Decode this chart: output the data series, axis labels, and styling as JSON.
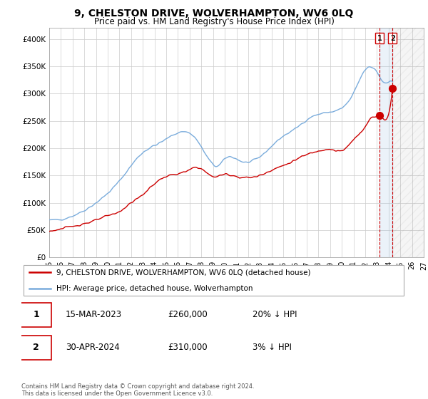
{
  "title": "9, CHELSTON DRIVE, WOLVERHAMPTON, WV6 0LQ",
  "subtitle": "Price paid vs. HM Land Registry's House Price Index (HPI)",
  "hpi_color": "#7aacdc",
  "price_color": "#cc0000",
  "background_color": "#ffffff",
  "grid_color": "#cccccc",
  "ylim": [
    0,
    420000
  ],
  "yticks": [
    0,
    50000,
    100000,
    150000,
    200000,
    250000,
    300000,
    350000,
    400000
  ],
  "ytick_labels": [
    "£0",
    "£50K",
    "£100K",
    "£150K",
    "£200K",
    "£250K",
    "£300K",
    "£350K",
    "£400K"
  ],
  "x_start_year": 1995,
  "x_end_year": 2027,
  "sale1_year": 2023.21,
  "sale1_price": 260000,
  "sale2_year": 2024.33,
  "sale2_price": 310000,
  "legend_line1": "9, CHELSTON DRIVE, WOLVERHAMPTON, WV6 0LQ (detached house)",
  "legend_line2": "HPI: Average price, detached house, Wolverhampton",
  "annotation1_label": "1",
  "annotation1_date": "15-MAR-2023",
  "annotation1_price": "£260,000",
  "annotation1_pct": "20% ↓ HPI",
  "annotation2_label": "2",
  "annotation2_date": "30-APR-2024",
  "annotation2_price": "£310,000",
  "annotation2_pct": "3% ↓ HPI",
  "footer": "Contains HM Land Registry data © Crown copyright and database right 2024.\nThis data is licensed under the Open Government Licence v3.0."
}
